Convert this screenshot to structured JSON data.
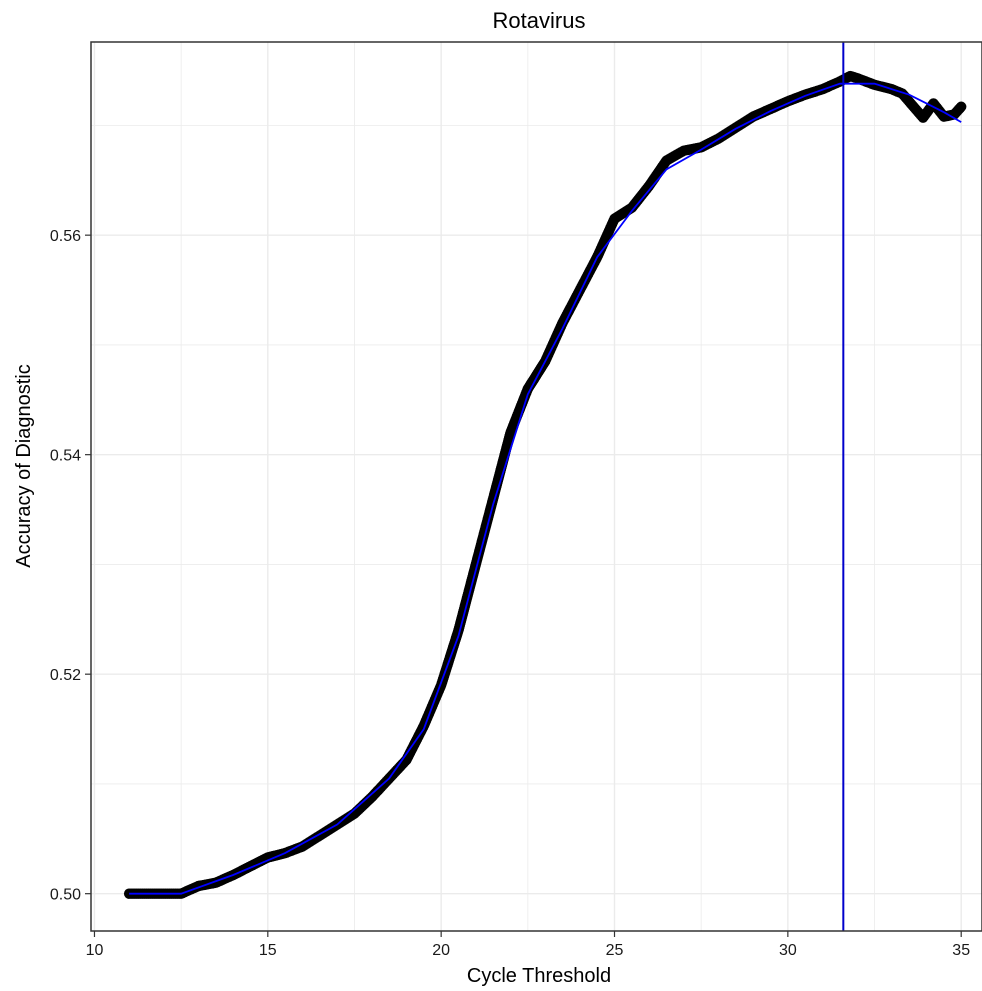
{
  "chart_data": {
    "type": "scatter",
    "title": "Rotavirus",
    "xlabel": "Cycle Threshold",
    "ylabel": "Accuracy of Diagnostic",
    "xlim": [
      9.9,
      35.6
    ],
    "ylim": [
      0.4966,
      0.5776
    ],
    "x_ticks": [
      10,
      15,
      20,
      25,
      30,
      35
    ],
    "y_ticks": [
      0.5,
      0.52,
      0.54,
      0.56
    ],
    "x_tick_labels": [
      "10",
      "15",
      "20",
      "25",
      "30",
      "35"
    ],
    "y_tick_labels": [
      "0.50",
      "0.52",
      "0.54",
      "0.56"
    ],
    "grid": true,
    "legend": "none",
    "colors": {
      "points": "#000000",
      "smooth_line": "#0000ff",
      "vline": "#0000cc",
      "grid": "#ebebeb",
      "panel_border": "#333333"
    },
    "vline_x": 31.6,
    "series": [
      {
        "x": [
          11.0,
          11.5,
          12.0,
          12.5,
          13.0,
          13.5,
          14.0,
          14.5,
          15.0,
          15.5,
          16.0,
          16.5,
          17.0,
          17.5,
          18.0,
          18.5,
          19.0,
          19.5,
          20.0,
          20.5,
          21.0,
          21.5,
          22.0,
          22.5,
          23.0,
          23.5,
          24.0,
          24.5,
          25.0,
          25.5,
          26.0,
          26.5,
          27.0,
          27.5,
          28.0,
          28.5,
          29.0,
          29.5,
          30.0,
          30.5,
          31.0,
          31.5,
          31.8,
          32.0,
          32.5,
          33.0,
          33.3,
          33.6,
          33.9,
          34.2,
          34.5,
          34.8,
          35.0
        ],
        "y": [
          0.5,
          0.5,
          0.5,
          0.5,
          0.5007,
          0.501,
          0.5017,
          0.5025,
          0.5033,
          0.5037,
          0.5043,
          0.5053,
          0.5063,
          0.5073,
          0.5088,
          0.5105,
          0.5122,
          0.5153,
          0.519,
          0.524,
          0.53,
          0.536,
          0.542,
          0.546,
          0.5485,
          0.552,
          0.555,
          0.558,
          0.5615,
          0.5625,
          0.5645,
          0.5668,
          0.5677,
          0.568,
          0.5688,
          0.5698,
          0.5708,
          0.5715,
          0.5722,
          0.5728,
          0.5733,
          0.574,
          0.5745,
          0.5743,
          0.5737,
          0.5733,
          0.5729,
          0.5718,
          0.5707,
          0.572,
          0.5708,
          0.571,
          0.5717
        ]
      }
    ],
    "smooth_line": {
      "x": [
        11.0,
        12.5,
        14.0,
        15.5,
        17.0,
        18.5,
        19.5,
        20.5,
        21.5,
        22.5,
        23.5,
        24.5,
        25.5,
        26.5,
        27.5,
        28.5,
        29.5,
        30.5,
        31.5,
        32.5,
        33.5,
        34.5,
        35.0
      ],
      "y": [
        0.5,
        0.5,
        0.5017,
        0.5037,
        0.5063,
        0.5105,
        0.515,
        0.5235,
        0.5355,
        0.5455,
        0.5515,
        0.558,
        0.5622,
        0.566,
        0.5678,
        0.5697,
        0.5713,
        0.5727,
        0.5738,
        0.5738,
        0.5728,
        0.5712,
        0.5703
      ]
    }
  }
}
